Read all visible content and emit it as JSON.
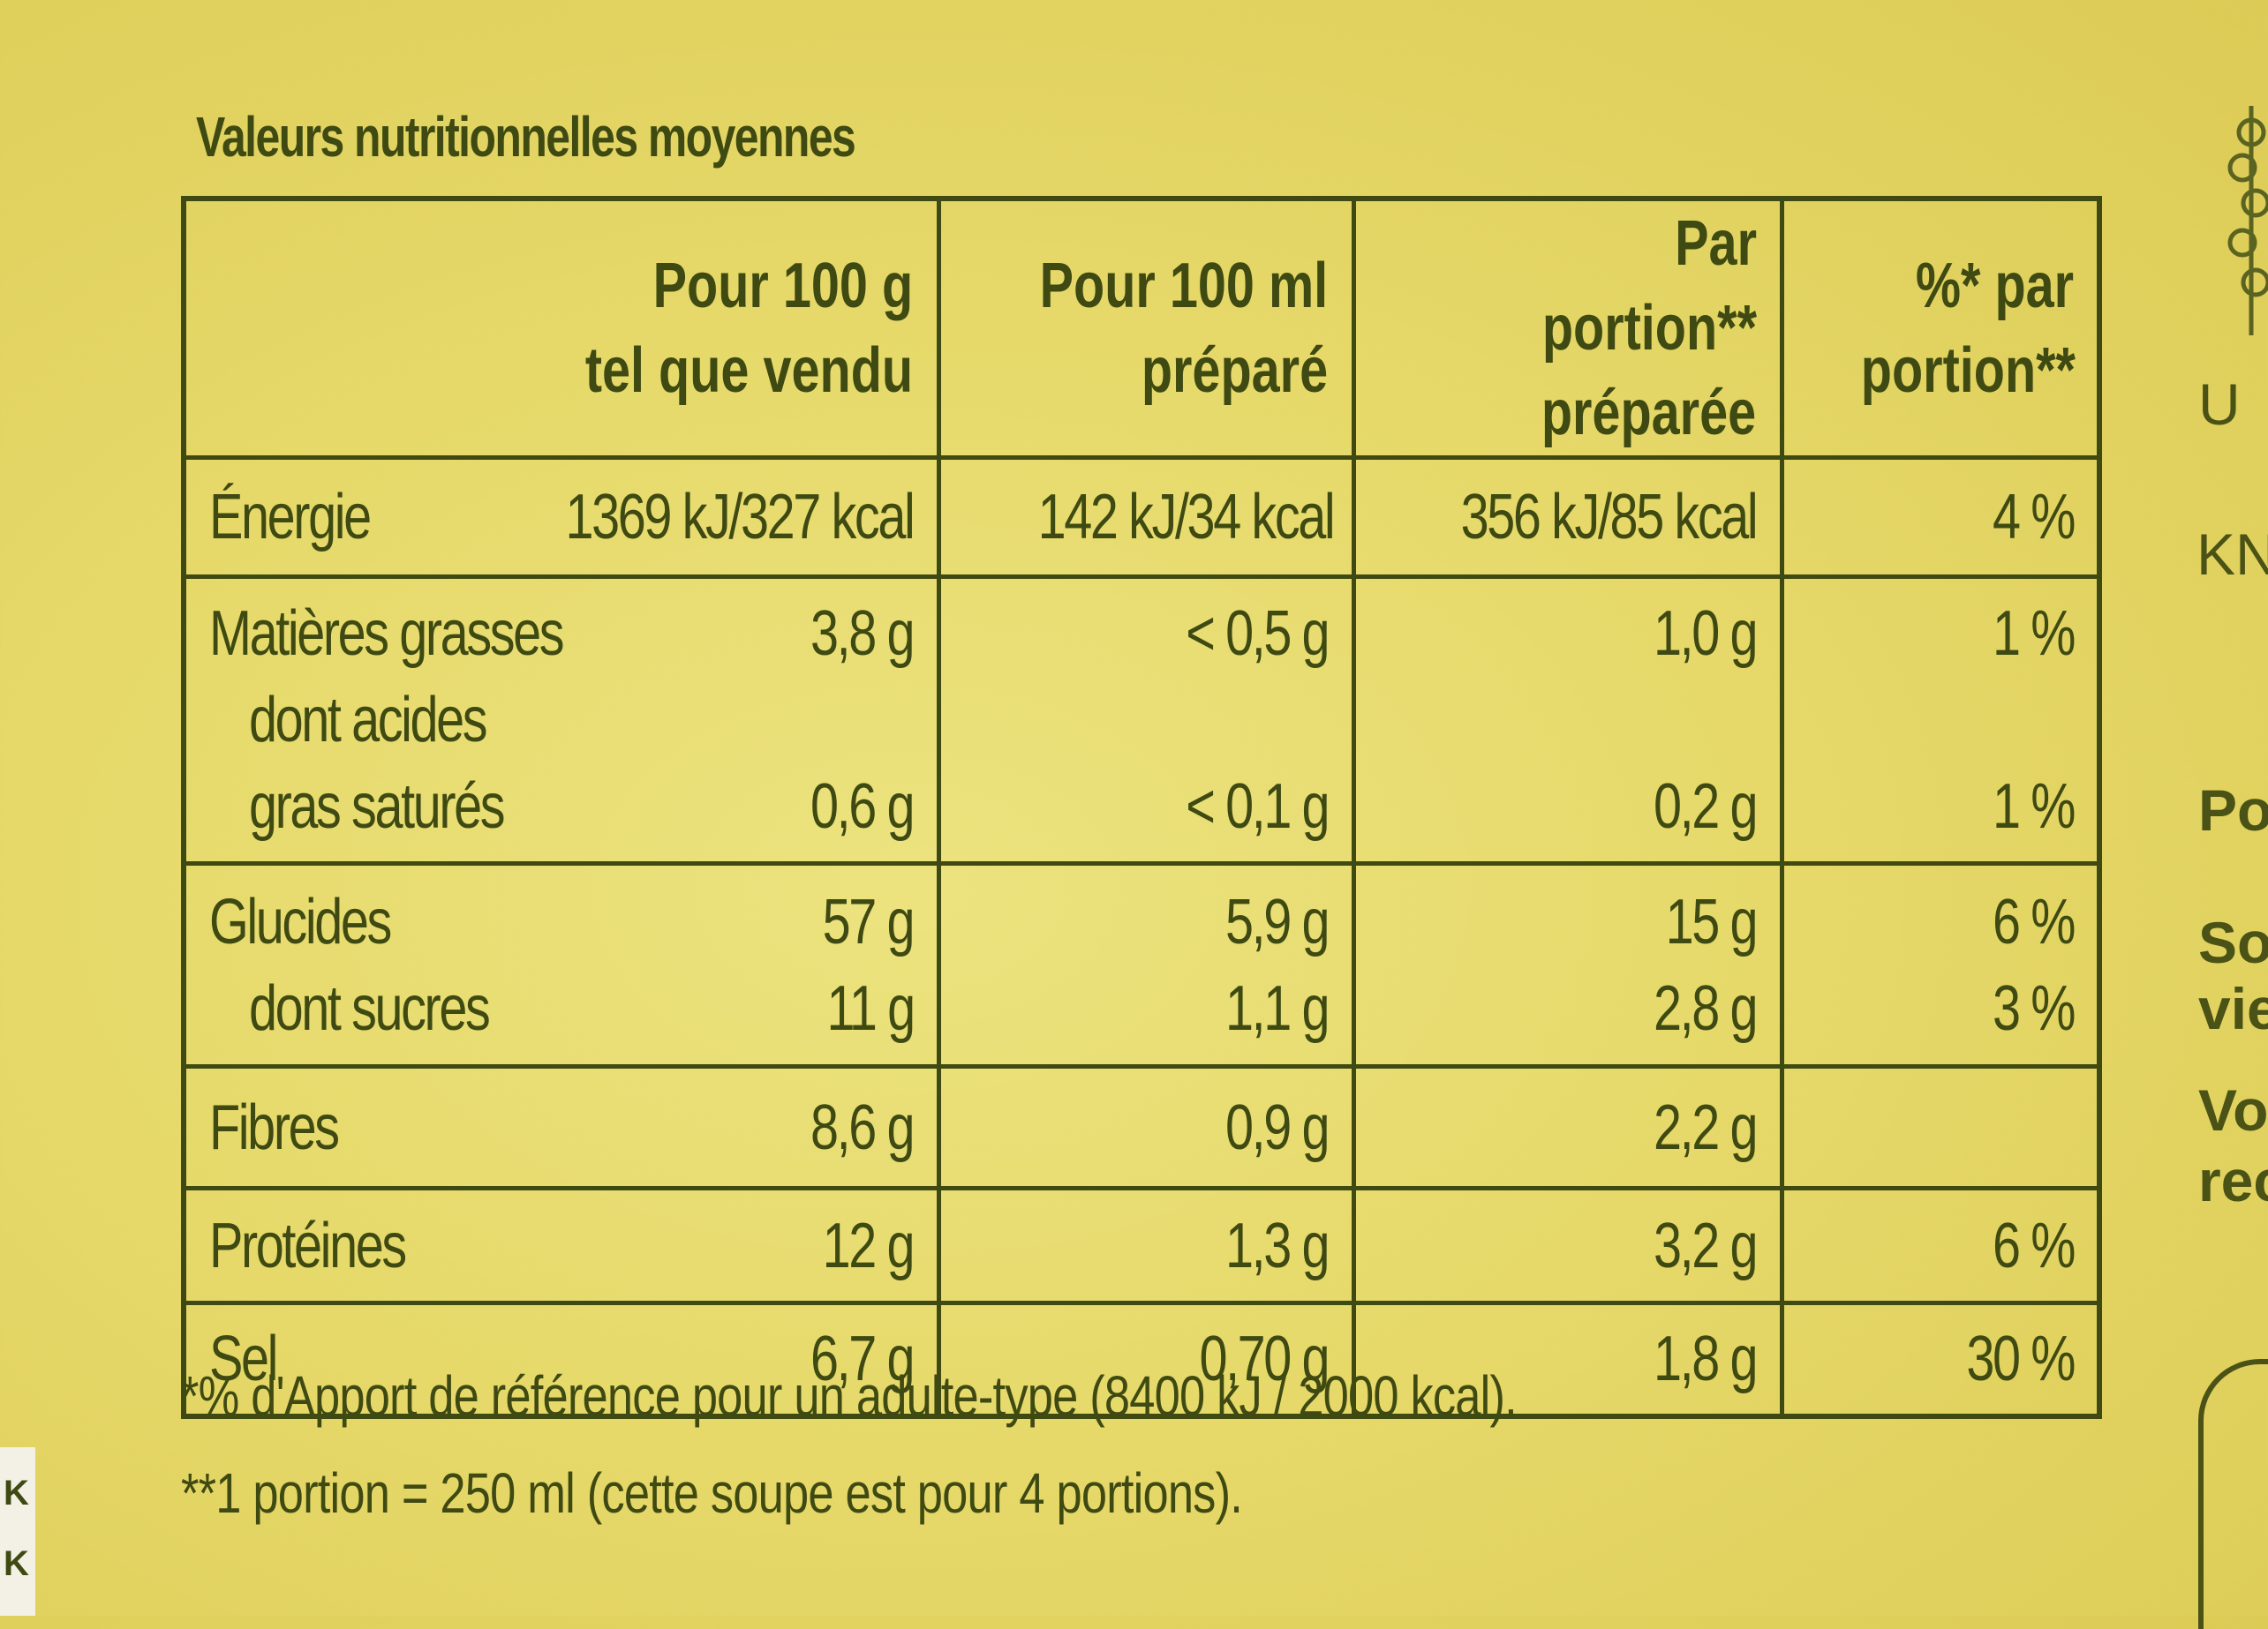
{
  "title": "Valeurs nutritionnelles moyennes",
  "header": {
    "col1": [
      "Pour 100 g",
      "tel que vendu"
    ],
    "col2": [
      "Pour 100 ml",
      "préparé"
    ],
    "col3": [
      "Par portion**",
      "préparée"
    ],
    "col4": [
      "%* par",
      "portion**"
    ]
  },
  "rows": {
    "energie": {
      "label": "Énergie",
      "v1": "1369 kJ/327 kcal",
      "v2": "142 kJ/34 kcal",
      "v3": "356 kJ/85 kcal",
      "v4": "4 %"
    },
    "matieres": {
      "label": "Matières grasses",
      "v1": "3,8 g",
      "v2": "< 0,5 g",
      "v3": "1,0 g",
      "v4": "1 %"
    },
    "satures": {
      "label1": "dont acides",
      "label2": "gras saturés",
      "v1": "0,6 g",
      "v2": "< 0,1 g",
      "v3": "0,2 g",
      "v4": "1 %"
    },
    "glucides": {
      "label": "Glucides",
      "v1": "57 g",
      "v2": "5,9 g",
      "v3": "15 g",
      "v4": "6 %"
    },
    "sucres": {
      "label": "dont sucres",
      "v1": "11 g",
      "v2": "1,1 g",
      "v3": "2,8 g",
      "v4": "3 %"
    },
    "fibres": {
      "label": "Fibres",
      "v1": "8,6 g",
      "v2": "0,9 g",
      "v3": "2,2 g",
      "v4": ""
    },
    "proteines": {
      "label": "Protéines",
      "v1": "12 g",
      "v2": "1,3 g",
      "v3": "3,2 g",
      "v4": "6 %"
    },
    "sel": {
      "label": "Sel",
      "v1": "6,7 g",
      "v2": "0,70 g",
      "v3": "1,8 g",
      "v4": "30 %"
    }
  },
  "footnotes": {
    "line1": "*% d'Apport de référence pour un adulte-type (8400 kJ / 2000 kcal).",
    "line2": "**1 portion = 250 ml (cette soupe est pour 4 portions)."
  },
  "side_text": {
    "t1": "U",
    "t2": "KN",
    "t3": "Po",
    "t4": "So",
    "t5": "vie",
    "t6": "Vo",
    "t7": "rec"
  },
  "left_edge": {
    "t1": "K",
    "t2": "K"
  },
  "colors": {
    "background": "#e6d96a",
    "ink": "#3f4a12"
  }
}
